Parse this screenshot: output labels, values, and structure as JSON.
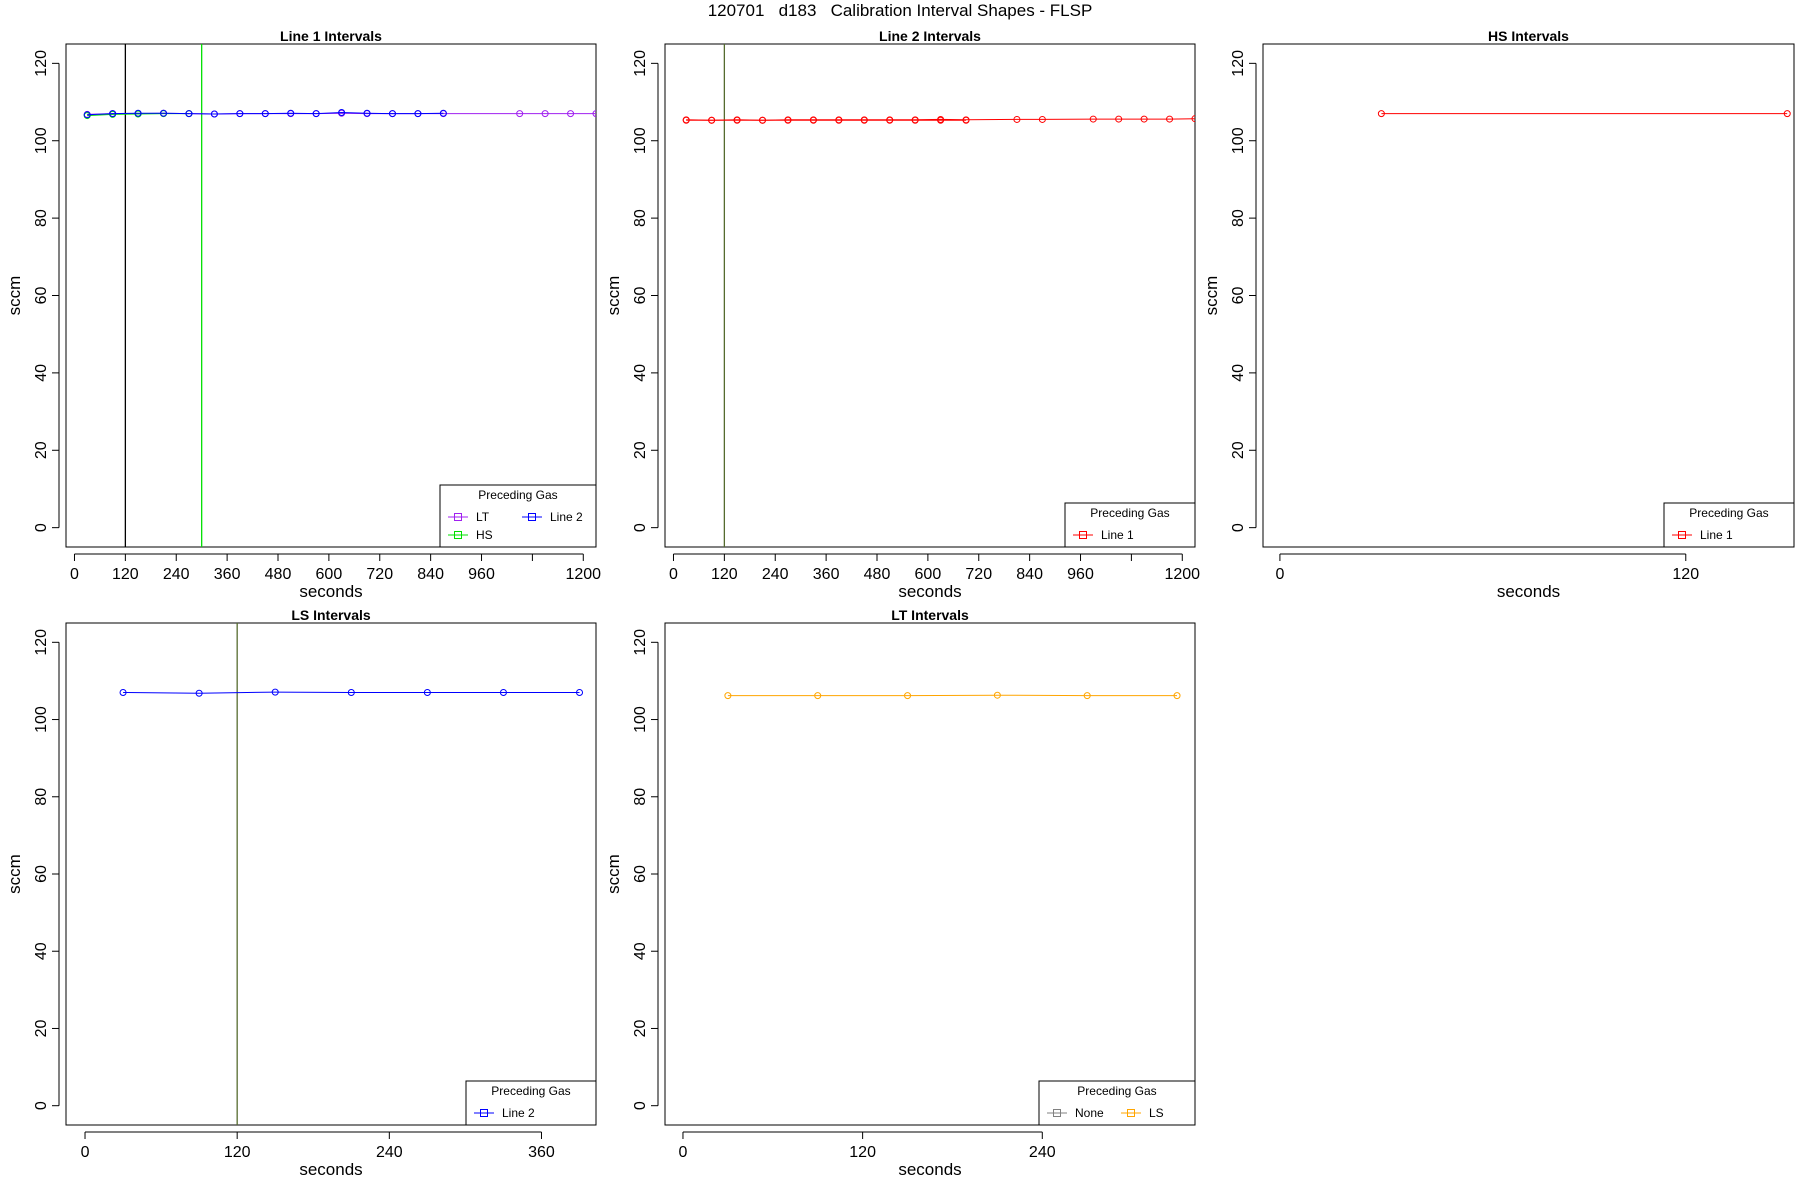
{
  "title": "120701   d183   Calibration Interval Shapes - FLSP",
  "colors": {
    "LT": "#a020f0",
    "HS": "#00e000",
    "Line 2": "#0000ff",
    "Line 1": "#ff0000",
    "None": "#808080",
    "LS": "#ffa500"
  },
  "chart_data": [
    {
      "type": "line",
      "title": "Line 1 Intervals",
      "xlabel": "seconds",
      "ylabel": "sccm",
      "xlim": [
        -20,
        1230
      ],
      "ylim": [
        -5,
        125
      ],
      "xticks": [
        0,
        120,
        240,
        360,
        480,
        600,
        720,
        840,
        960,
        1080,
        1200
      ],
      "xtick_labels": [
        "0",
        "120",
        "240",
        "360",
        "480",
        "600",
        "720",
        "840",
        "960",
        "",
        "1200"
      ],
      "yticks": [
        0,
        20,
        40,
        60,
        80,
        100,
        120
      ],
      "vlines": [
        {
          "x": 120,
          "color": "#000000"
        },
        {
          "x": 300,
          "color": "#00e000"
        }
      ],
      "legend": {
        "title": "Preceding Gas",
        "position": "bottom-right",
        "columns": 2,
        "entries": [
          "LT",
          "HS",
          "Line 2"
        ]
      },
      "series": [
        {
          "name": "LT",
          "color": "#a020f0",
          "x": [
            30,
            90,
            150,
            210,
            270,
            330,
            390,
            450,
            510,
            570,
            630,
            690,
            750,
            810,
            870,
            1050,
            1110,
            1170,
            1230
          ],
          "y": [
            106.8,
            107.0,
            107.0,
            107.1,
            107.0,
            106.9,
            107.0,
            107.0,
            107.0,
            107.0,
            107.1,
            107.0,
            107.0,
            107.0,
            107.0,
            107.0,
            107.0,
            107.0,
            107.0
          ]
        },
        {
          "name": "HS",
          "color": "#00e000",
          "x": [
            30,
            90,
            150,
            210,
            270
          ],
          "y": [
            106.5,
            106.8,
            106.9,
            107.0,
            107.0
          ]
        },
        {
          "name": "Line 2",
          "color": "#0000ff",
          "x": [
            30,
            90,
            150,
            210,
            270,
            330,
            390,
            450,
            510,
            570,
            630,
            690,
            750,
            810,
            870
          ],
          "y": [
            106.7,
            107.0,
            107.1,
            107.1,
            107.0,
            106.9,
            107.0,
            107.0,
            107.1,
            107.0,
            107.3,
            107.1,
            107.0,
            107.0,
            107.1
          ]
        }
      ]
    },
    {
      "type": "line",
      "title": "Line 2 Intervals",
      "xlabel": "seconds",
      "ylabel": "sccm",
      "xlim": [
        -20,
        1230
      ],
      "ylim": [
        -5,
        125
      ],
      "xticks": [
        0,
        120,
        240,
        360,
        480,
        600,
        720,
        840,
        960,
        1080,
        1200
      ],
      "xtick_labels": [
        "0",
        "120",
        "240",
        "360",
        "480",
        "600",
        "720",
        "840",
        "960",
        "",
        "1200"
      ],
      "yticks": [
        0,
        20,
        40,
        60,
        80,
        100,
        120
      ],
      "vlines": [
        {
          "x": 120,
          "color": "#556b2f"
        }
      ],
      "legend": {
        "title": "Preceding Gas",
        "position": "bottom-right",
        "columns": 1,
        "entries": [
          "Line 1"
        ]
      },
      "series": [
        {
          "name": "Line 1",
          "color": "#ff0000",
          "x": [
            30,
            90,
            150,
            210,
            270,
            330,
            390,
            450,
            510,
            570,
            630,
            690,
            810,
            870,
            990,
            1050,
            1110,
            1170,
            1230
          ],
          "y": [
            105.4,
            105.3,
            105.3,
            105.3,
            105.4,
            105.4,
            105.4,
            105.4,
            105.4,
            105.4,
            105.5,
            105.4,
            105.5,
            105.5,
            105.6,
            105.6,
            105.6,
            105.6,
            105.7
          ]
        },
        {
          "name": "Line 1",
          "color": "#ff0000",
          "x": [
            30,
            90,
            150,
            210,
            270,
            330,
            390,
            450,
            510,
            570,
            630,
            690
          ],
          "y": [
            105.3,
            105.3,
            105.4,
            105.3,
            105.3,
            105.3,
            105.3,
            105.3,
            105.3,
            105.3,
            105.3,
            105.3
          ]
        }
      ]
    },
    {
      "type": "line",
      "title": "HS Intervals",
      "xlabel": "seconds",
      "ylabel": "sccm",
      "xlim": [
        -5,
        152
      ],
      "ylim": [
        -5,
        125
      ],
      "xticks": [
        0,
        120
      ],
      "xtick_labels": [
        "0",
        "120"
      ],
      "yticks": [
        0,
        20,
        40,
        60,
        80,
        100,
        120
      ],
      "vlines": [],
      "legend": {
        "title": "Preceding Gas",
        "position": "bottom-right",
        "columns": 1,
        "entries": [
          "Line 1"
        ]
      },
      "series": [
        {
          "name": "Line 1",
          "color": "#ff0000",
          "x": [
            30,
            150
          ],
          "y": [
            107.0,
            107.0
          ]
        }
      ]
    },
    {
      "type": "line",
      "title": "LS Intervals",
      "xlabel": "seconds",
      "ylabel": "sccm",
      "xlim": [
        -15,
        403
      ],
      "ylim": [
        -5,
        125
      ],
      "xticks": [
        0,
        120,
        240,
        360
      ],
      "xtick_labels": [
        "0",
        "120",
        "240",
        "360"
      ],
      "yticks": [
        0,
        20,
        40,
        60,
        80,
        100,
        120
      ],
      "vlines": [
        {
          "x": 120,
          "color": "#556b2f"
        }
      ],
      "legend": {
        "title": "Preceding Gas",
        "position": "bottom-right",
        "columns": 1,
        "entries": [
          "Line 2"
        ]
      },
      "series": [
        {
          "name": "Line 2",
          "color": "#0000ff",
          "x": [
            30,
            90,
            150,
            210,
            270,
            330,
            390
          ],
          "y": [
            107.0,
            106.8,
            107.1,
            107.0,
            107.0,
            107.0,
            107.0
          ]
        }
      ]
    },
    {
      "type": "line",
      "title": "LT Intervals",
      "xlabel": "seconds",
      "ylabel": "sccm",
      "xlim": [
        -12,
        342
      ],
      "ylim": [
        -5,
        125
      ],
      "xticks": [
        0,
        120,
        240
      ],
      "xtick_labels": [
        "0",
        "120",
        "240"
      ],
      "yticks": [
        0,
        20,
        40,
        60,
        80,
        100,
        120
      ],
      "vlines": [],
      "legend": {
        "title": "Preceding Gas",
        "position": "bottom-right",
        "columns": 2,
        "entries": [
          "None",
          "LS"
        ]
      },
      "series": [
        {
          "name": "None",
          "color": "#808080",
          "x": [],
          "y": []
        },
        {
          "name": "LS",
          "color": "#ffa500",
          "x": [
            30,
            90,
            150,
            210,
            270,
            330
          ],
          "y": [
            106.2,
            106.2,
            106.2,
            106.3,
            106.2,
            106.2
          ]
        }
      ]
    }
  ]
}
